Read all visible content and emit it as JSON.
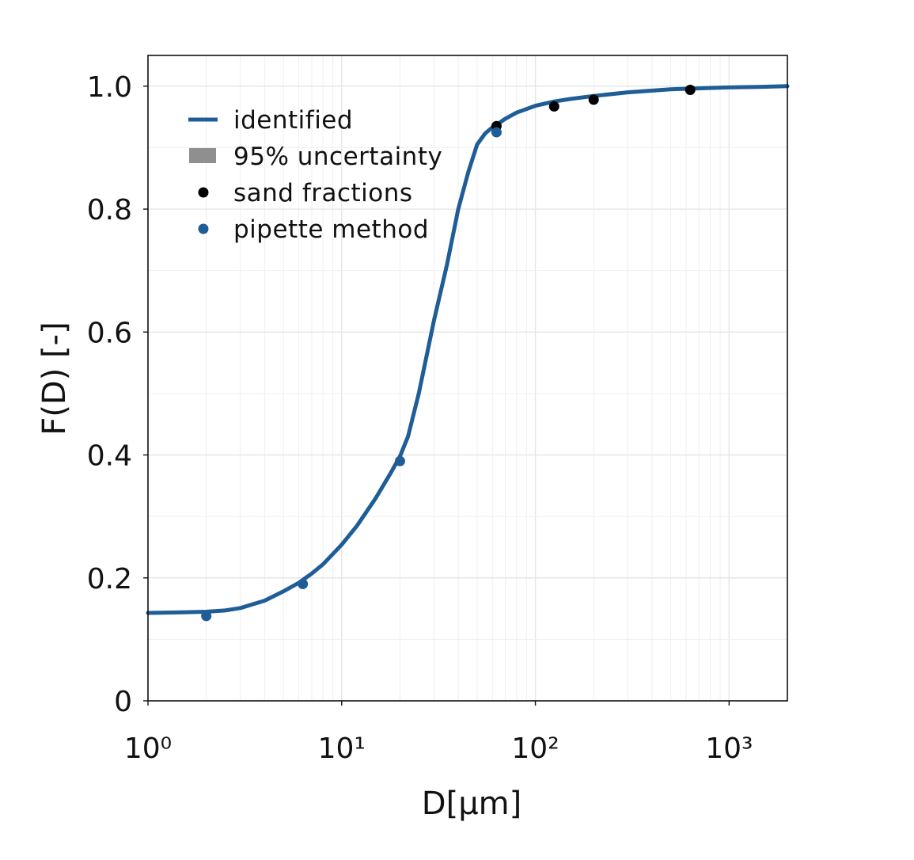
{
  "chart_data": {
    "type": "line",
    "title": "",
    "xlabel": "D[μm]",
    "ylabel": "F(D) [-]",
    "xscale": "log",
    "xlim": [
      1,
      2000
    ],
    "ylim": [
      0,
      1.05
    ],
    "grid": true,
    "legend_position": "top-left",
    "x_ticks": [
      {
        "value": 1,
        "label": "10⁰"
      },
      {
        "value": 10,
        "label": "10¹"
      },
      {
        "value": 100,
        "label": "10²"
      },
      {
        "value": 1000,
        "label": "10³"
      }
    ],
    "y_ticks": [
      {
        "value": 0,
        "label": "0"
      },
      {
        "value": 0.2,
        "label": "0.2"
      },
      {
        "value": 0.4,
        "label": "0.4"
      },
      {
        "value": 0.6,
        "label": "0.6"
      },
      {
        "value": 0.8,
        "label": "0.8"
      },
      {
        "value": 1.0,
        "label": "1.0"
      }
    ],
    "legend": [
      {
        "label": "identified",
        "kind": "line",
        "color": "#1f5d96"
      },
      {
        "label": "95% uncertainty",
        "kind": "band",
        "color": "#8f8f8f"
      },
      {
        "label": "sand fractions",
        "kind": "point",
        "color": "#000000"
      },
      {
        "label": "pipette method",
        "kind": "point",
        "color": "#1f5d96"
      }
    ],
    "series": [
      {
        "name": "identified",
        "kind": "line",
        "color": "#1f5d96",
        "x": [
          1,
          1.5,
          2,
          2.5,
          3,
          4,
          5,
          6,
          7,
          8,
          10,
          12,
          15,
          18,
          20,
          22,
          25,
          30,
          35,
          40,
          45,
          50,
          55,
          60,
          63,
          70,
          80,
          100,
          125,
          150,
          200,
          300,
          500,
          630,
          1000,
          1500,
          2000
        ],
        "y": [
          0.143,
          0.144,
          0.145,
          0.147,
          0.151,
          0.163,
          0.178,
          0.192,
          0.207,
          0.222,
          0.254,
          0.285,
          0.33,
          0.372,
          0.398,
          0.43,
          0.5,
          0.62,
          0.71,
          0.8,
          0.86,
          0.905,
          0.923,
          0.933,
          0.937,
          0.947,
          0.957,
          0.968,
          0.975,
          0.979,
          0.984,
          0.99,
          0.995,
          0.996,
          0.998,
          0.999,
          1.0
        ]
      },
      {
        "name": "sand fractions",
        "kind": "scatter",
        "color": "#000000",
        "x": [
          63,
          125,
          200,
          630
        ],
        "y": [
          0.935,
          0.967,
          0.978,
          0.994
        ]
      },
      {
        "name": "pipette method",
        "kind": "scatter",
        "color": "#1f5d96",
        "x": [
          2,
          6.3,
          20,
          63
        ],
        "y": [
          0.138,
          0.19,
          0.39,
          0.925
        ]
      }
    ]
  }
}
